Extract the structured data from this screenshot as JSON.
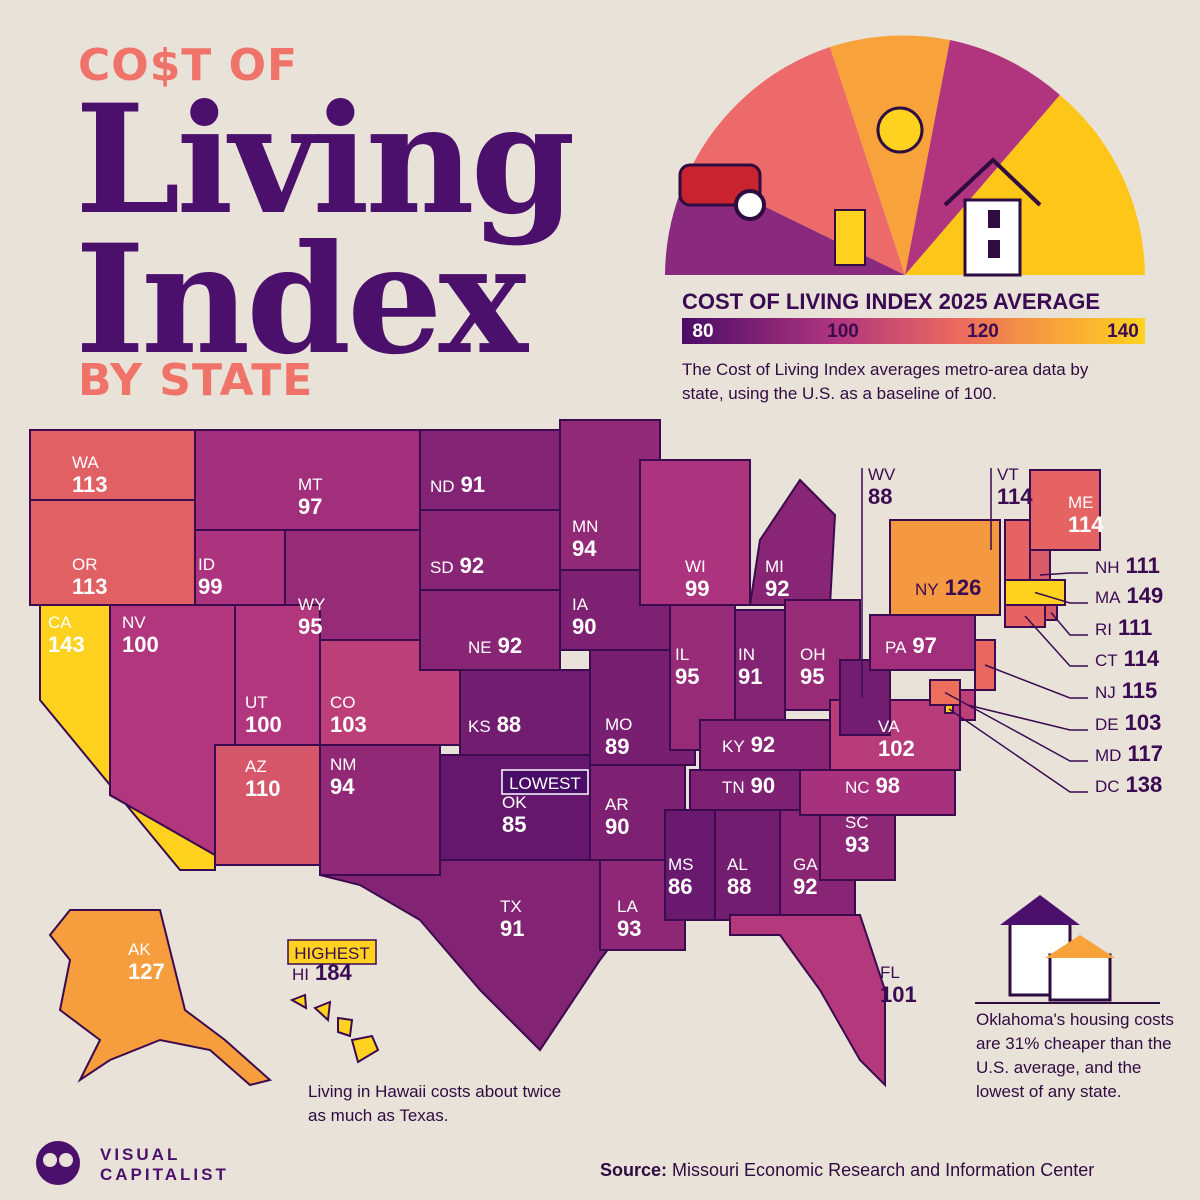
{
  "header": {
    "line1": "CO$T OF",
    "line2": "Living",
    "line3": "Index",
    "line4": "BY STATE"
  },
  "legend": {
    "title": "COST OF LIVING INDEX 2025 AVERAGE",
    "range": [
      80,
      140
    ],
    "ticks": [
      80,
      100,
      120,
      140
    ],
    "description": "The Cost of Living Index averages metro-area data by state, using the U.S. as a baseline of 100."
  },
  "states": [
    {
      "abbr": "WA",
      "value": 113
    },
    {
      "abbr": "OR",
      "value": 113
    },
    {
      "abbr": "CA",
      "value": 143
    },
    {
      "abbr": "ID",
      "value": 99
    },
    {
      "abbr": "MT",
      "value": 97
    },
    {
      "abbr": "WY",
      "value": 95
    },
    {
      "abbr": "NV",
      "value": 100
    },
    {
      "abbr": "UT",
      "value": 100
    },
    {
      "abbr": "CO",
      "value": 103
    },
    {
      "abbr": "AZ",
      "value": 110
    },
    {
      "abbr": "NM",
      "value": 94
    },
    {
      "abbr": "ND",
      "value": 91
    },
    {
      "abbr": "SD",
      "value": 92
    },
    {
      "abbr": "NE",
      "value": 92
    },
    {
      "abbr": "KS",
      "value": 88
    },
    {
      "abbr": "OK",
      "value": 85
    },
    {
      "abbr": "TX",
      "value": 91
    },
    {
      "abbr": "MN",
      "value": 94
    },
    {
      "abbr": "IA",
      "value": 90
    },
    {
      "abbr": "MO",
      "value": 89
    },
    {
      "abbr": "AR",
      "value": 90
    },
    {
      "abbr": "LA",
      "value": 93
    },
    {
      "abbr": "WI",
      "value": 99
    },
    {
      "abbr": "MI",
      "value": 92
    },
    {
      "abbr": "IL",
      "value": 95
    },
    {
      "abbr": "IN",
      "value": 91
    },
    {
      "abbr": "OH",
      "value": 95
    },
    {
      "abbr": "KY",
      "value": 92
    },
    {
      "abbr": "TN",
      "value": 90
    },
    {
      "abbr": "MS",
      "value": 86
    },
    {
      "abbr": "AL",
      "value": 88
    },
    {
      "abbr": "GA",
      "value": 92
    },
    {
      "abbr": "FL",
      "value": 101
    },
    {
      "abbr": "SC",
      "value": 93
    },
    {
      "abbr": "NC",
      "value": 98
    },
    {
      "abbr": "VA",
      "value": 102
    },
    {
      "abbr": "WV",
      "value": 88
    },
    {
      "abbr": "PA",
      "value": 97
    },
    {
      "abbr": "NY",
      "value": 126
    },
    {
      "abbr": "VT",
      "value": 114
    },
    {
      "abbr": "ME",
      "value": 114
    },
    {
      "abbr": "NH",
      "value": 111
    },
    {
      "abbr": "MA",
      "value": 149
    },
    {
      "abbr": "RI",
      "value": 111
    },
    {
      "abbr": "CT",
      "value": 114
    },
    {
      "abbr": "NJ",
      "value": 115
    },
    {
      "abbr": "DE",
      "value": 103
    },
    {
      "abbr": "MD",
      "value": 117
    },
    {
      "abbr": "DC",
      "value": 138
    },
    {
      "abbr": "AK",
      "value": 127
    },
    {
      "abbr": "HI",
      "value": 184
    }
  ],
  "callouts": {
    "lowest": "LOWEST",
    "highest": "HIGHEST"
  },
  "notes": {
    "hawaii": "Living in Hawaii costs about twice as much as Texas.",
    "oklahoma": "Oklahoma's housing costs are 31% cheaper than the U.S. average, and the lowest of any state."
  },
  "source": {
    "label": "Source:",
    "text": "Missouri Economic Research and Information Center"
  },
  "logo": {
    "line1": "VISUAL",
    "line2": "CAPITALIST"
  }
}
